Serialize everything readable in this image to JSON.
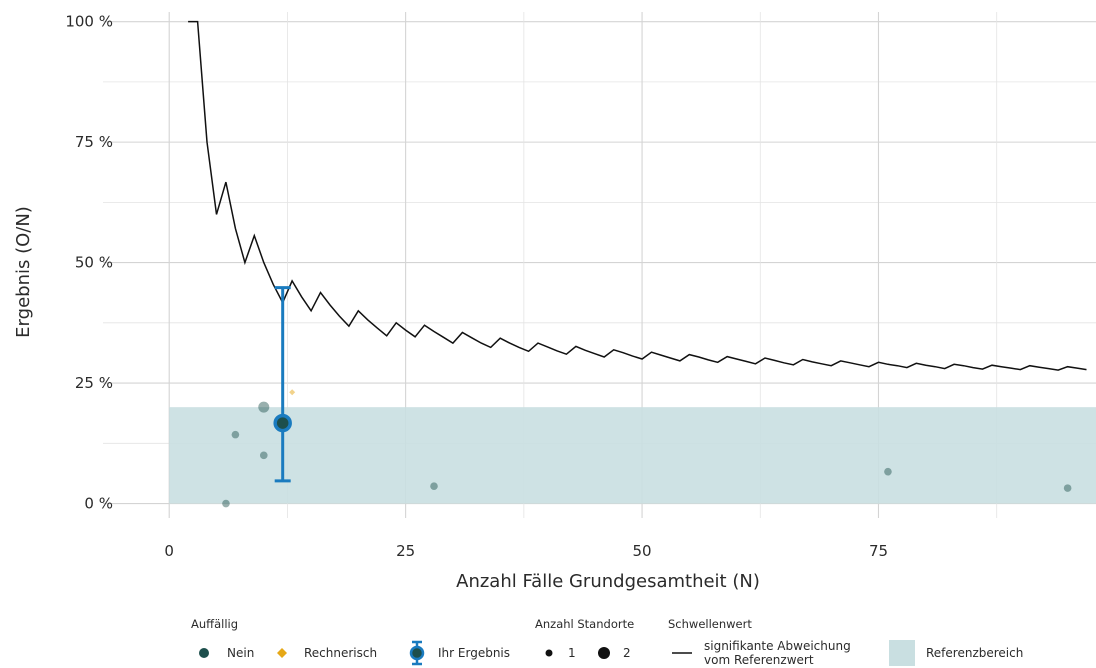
{
  "chart_data": {
    "type": "scatter",
    "xlabel": "Anzahl Fälle Grundgesamtheit (N)",
    "ylabel": "Ergebnis (O/N)",
    "xlim": [
      -7,
      98
    ],
    "ylim": [
      -3,
      102
    ],
    "x_ticks": [
      0,
      25,
      50,
      75
    ],
    "x_tick_labels": [
      "0",
      "25",
      "50",
      "75"
    ],
    "y_ticks": [
      0,
      25,
      50,
      75,
      100
    ],
    "y_tick_labels": [
      "0 %",
      "25 %",
      "50 %",
      "75 %",
      "100 %"
    ],
    "grid": true,
    "legend_position": "bottom",
    "reference_range": {
      "label": "Referenzbereich",
      "y_from": 0,
      "y_to": 20,
      "color": "#c9dfe1"
    },
    "threshold": {
      "name": "signifikante Abweichung vom Referenzwert",
      "x": [
        2,
        3,
        4,
        5,
        6,
        7,
        8,
        9,
        10,
        11,
        12,
        13,
        14,
        15,
        16,
        17,
        18,
        19,
        20,
        21,
        22,
        23,
        24,
        25,
        26,
        27,
        28,
        29,
        30,
        31,
        32,
        33,
        34,
        35,
        36,
        37,
        38,
        39,
        40,
        41,
        42,
        43,
        44,
        45,
        46,
        47,
        48,
        49,
        50,
        51,
        52,
        53,
        54,
        55,
        56,
        57,
        58,
        59,
        60,
        61,
        62,
        63,
        64,
        65,
        66,
        67,
        68,
        69,
        70,
        71,
        72,
        73,
        74,
        75,
        76,
        77,
        78,
        79,
        80,
        81,
        82,
        83,
        84,
        85,
        86,
        87,
        88,
        89,
        90,
        91,
        92,
        93,
        94,
        95,
        96,
        97
      ],
      "y": [
        100,
        100,
        75,
        60,
        66.7,
        57.1,
        50,
        55.6,
        50,
        45.5,
        41.7,
        46.2,
        42.9,
        40,
        43.8,
        41.2,
        38.9,
        36.8,
        40,
        38.1,
        36.4,
        34.8,
        37.5,
        36,
        34.6,
        37,
        35.7,
        34.5,
        33.3,
        35.5,
        34.4,
        33.3,
        32.4,
        34.3,
        33.3,
        32.4,
        31.6,
        33.3,
        32.5,
        31.7,
        31,
        32.6,
        31.8,
        31.1,
        30.4,
        31.9,
        31.3,
        30.6,
        30,
        31.4,
        30.8,
        30.2,
        29.6,
        30.9,
        30.4,
        29.8,
        29.3,
        30.5,
        30,
        29.5,
        29,
        30.2,
        29.7,
        29.2,
        28.8,
        29.9,
        29.4,
        29,
        28.6,
        29.6,
        29.2,
        28.8,
        28.4,
        29.3,
        28.9,
        28.6,
        28.2,
        29.1,
        28.7,
        28.4,
        28,
        28.9,
        28.6,
        28.2,
        27.9,
        28.7,
        28.4,
        28.1,
        27.8,
        28.6,
        28.3,
        28,
        27.7,
        28.4,
        28.1,
        27.8
      ]
    },
    "series": [
      {
        "name": "Nein",
        "color": "#1d4f4c",
        "points": [
          {
            "x": 6,
            "y": 0,
            "standorte": 1
          },
          {
            "x": 7,
            "y": 14.3,
            "standorte": 1
          },
          {
            "x": 10,
            "y": 10,
            "standorte": 1
          },
          {
            "x": 10,
            "y": 20,
            "standorte": 2
          },
          {
            "x": 28,
            "y": 3.6,
            "standorte": 1
          },
          {
            "x": 76,
            "y": 6.6,
            "standorte": 1
          },
          {
            "x": 95,
            "y": 3.2,
            "standorte": 1
          }
        ]
      },
      {
        "name": "Rechnerisch",
        "color": "#e6a817",
        "points": [
          {
            "x": 13,
            "y": 23.1,
            "standorte": 1
          }
        ]
      }
    ],
    "own_result": {
      "name": "Ihr Ergebnis",
      "x": 12,
      "y": 16.7,
      "ci_low": 4.7,
      "ci_high": 44.8,
      "color": "#1a7bbf"
    },
    "legend": {
      "auffaellig_title": "Auffällig",
      "nein_label": "Nein",
      "rechnerisch_label": "Rechnerisch",
      "ihr_ergebnis_label": "Ihr Ergebnis",
      "standorte_title": "Anzahl Standorte",
      "standorte_1": "1",
      "standorte_2": "2",
      "schwellenwert_title": "Schwellenwert",
      "schwellenwert_line1": "signifikante Abweichung",
      "schwellenwert_line2": "vom Referenzwert",
      "referenz_label": "Referenzbereich"
    }
  }
}
